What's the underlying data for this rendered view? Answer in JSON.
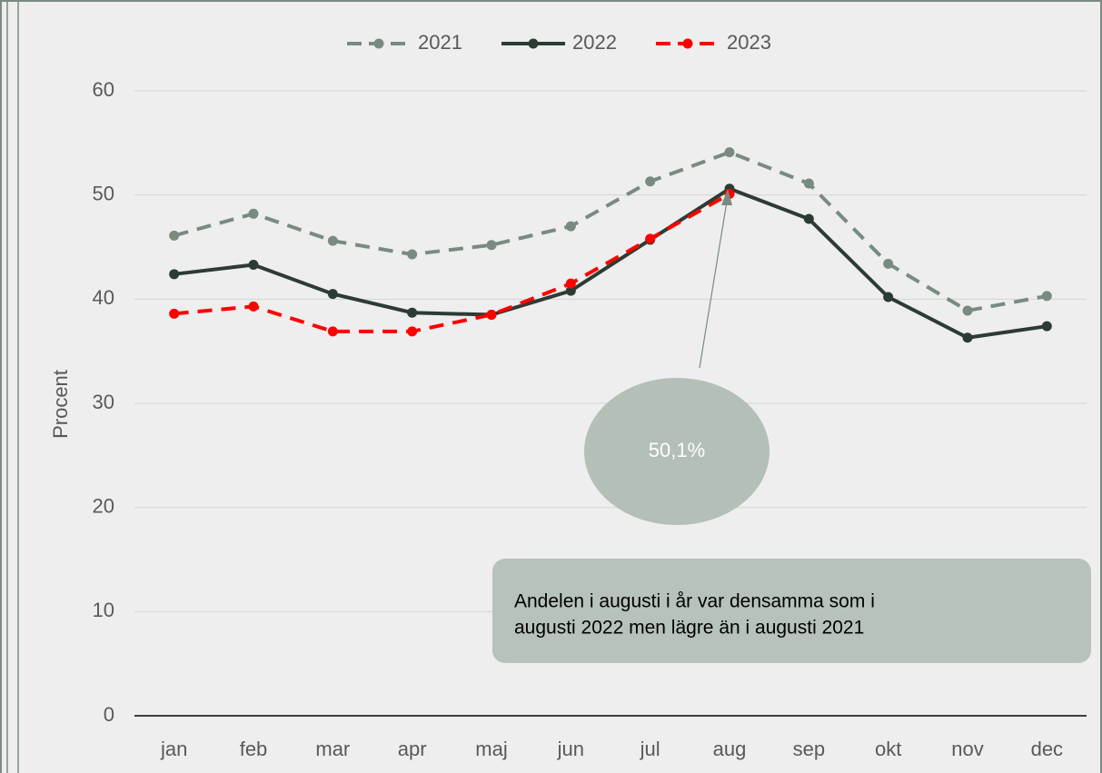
{
  "chart_data": {
    "type": "line",
    "y_label": "Procent",
    "categories": [
      "jan",
      "feb",
      "mar",
      "apr",
      "maj",
      "jun",
      "jul",
      "aug",
      "sep",
      "okt",
      "nov",
      "dec"
    ],
    "series": [
      {
        "name": "2021",
        "color": "#798b80",
        "dashed": true,
        "values": [
          46.1,
          48.2,
          45.6,
          44.3,
          45.2,
          47.0,
          51.3,
          54.1,
          51.1,
          43.4,
          38.9,
          40.3
        ]
      },
      {
        "name": "2022",
        "color": "#2c3b33",
        "dashed": false,
        "values": [
          42.4,
          43.3,
          40.5,
          38.7,
          38.5,
          40.8,
          45.7,
          50.6,
          47.7,
          40.2,
          36.3,
          37.4
        ]
      },
      {
        "name": "2023",
        "color": "#ff0000",
        "dashed": true,
        "values": [
          38.6,
          39.3,
          36.9,
          36.9,
          38.5,
          41.5,
          45.8,
          50.1,
          null,
          null,
          null,
          null
        ]
      }
    ],
    "ylim": [
      0,
      60
    ],
    "yticks": [
      0,
      10,
      20,
      30,
      40,
      50,
      60
    ],
    "grid": true,
    "annotations": [
      {
        "text": "50,1%"
      },
      {
        "lines": [
          "Andelen i augusti i år var densamma som i",
          "augusti 2022 men lägre än i augusti 2021"
        ]
      }
    ]
  }
}
